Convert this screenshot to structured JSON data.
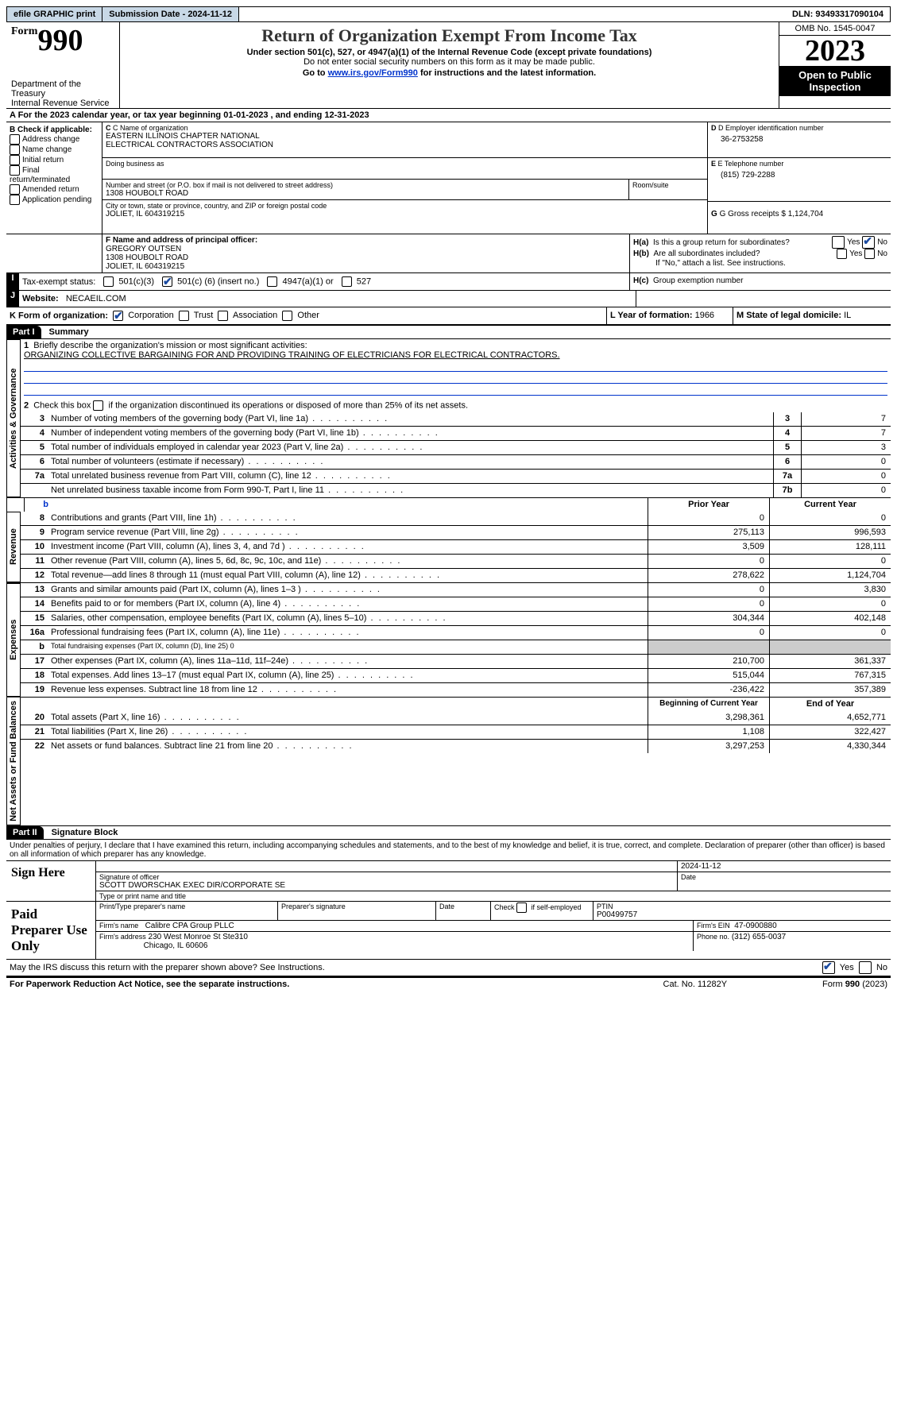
{
  "topbar": {
    "efile": "efile GRAPHIC print",
    "submission_label": "Submission Date - 2024-11-12",
    "dln": "DLN: 93493317090104"
  },
  "header": {
    "form_word": "Form",
    "form_number": "990",
    "title": "Return of Organization Exempt From Income Tax",
    "subtitle": "Under section 501(c), 527, or 4947(a)(1) of the Internal Revenue Code (except private foundations)",
    "ssn_note": "Do not enter social security numbers on this form as it may be made public.",
    "goto_prefix": "Go to ",
    "goto_link": "www.irs.gov/Form990",
    "goto_suffix": " for instructions and the latest information.",
    "dept": "Department of the Treasury",
    "irs": "Internal Revenue Service",
    "omb": "OMB No. 1545-0047",
    "year": "2023",
    "open_public": "Open to Public Inspection"
  },
  "rowA": {
    "prefix": "A For the 2023 calendar year, or tax year beginning ",
    "begin": "01-01-2023",
    "mid": "  , and ending ",
    "end": "12-31-2023"
  },
  "B": {
    "header": "B Check if applicable:",
    "items": [
      "Address change",
      "Name change",
      "Initial return",
      "Final return/terminated",
      "Amended return",
      "Application pending"
    ]
  },
  "C": {
    "name_lbl": "C Name of organization",
    "name1": "EASTERN ILLINOIS CHAPTER NATIONAL",
    "name2": "ELECTRICAL CONTRACTORS ASSOCIATION",
    "dba_lbl": "Doing business as",
    "street_lbl": "Number and street (or P.O. box if mail is not delivered to street address)",
    "street": "1308 HOUBOLT ROAD",
    "room_lbl": "Room/suite",
    "city_lbl": "City or town, state or province, country, and ZIP or foreign postal code",
    "city": "JOLIET, IL  604319215"
  },
  "D": {
    "lbl": "D Employer identification number",
    "val": "36-2753258"
  },
  "E": {
    "lbl": "E Telephone number",
    "val": "(815) 729-2288"
  },
  "G": {
    "lbl": "G Gross receipts $",
    "val": "1,124,704"
  },
  "F": {
    "lbl": "F  Name and address of principal officer:",
    "l1": "GREGORY OUTSEN",
    "l2": "1308 HOUBOLT ROAD",
    "l3": "JOLIET, IL  604319215"
  },
  "H": {
    "a_lbl": "H(a)  Is this a group return for subordinates?",
    "b_lbl": "H(b)  Are all subordinates included?",
    "b_note": "If \"No,\" attach a list. See instructions.",
    "c_lbl": "H(c)  Group exemption number",
    "yes": "Yes",
    "no": "No"
  },
  "I": {
    "lbl": "Tax-exempt status:",
    "opt1": "501(c)(3)",
    "opt2_pre": "501(c) (",
    "opt2_val": "6",
    "opt2_post": ") (insert no.)",
    "opt3": "4947(a)(1) or",
    "opt4": "527"
  },
  "J": {
    "lbl": "Website:",
    "val": "NECAEIL.COM"
  },
  "K": {
    "lbl": "K Form of organization:",
    "opts": [
      "Corporation",
      "Trust",
      "Association",
      "Other"
    ]
  },
  "L": {
    "lbl": "L Year of formation:",
    "val": "1966"
  },
  "M": {
    "lbl": "M State of legal domicile:",
    "val": "IL"
  },
  "part1": {
    "label": "Part I",
    "title": "Summary",
    "side_activities": "Activities & Governance",
    "side_revenue": "Revenue",
    "side_expenses": "Expenses",
    "side_net": "Net Assets or Fund Balances",
    "q1_lbl": "Briefly describe the organization's mission or most significant activities:",
    "q1_text": "ORGANIZING COLLECTIVE BARGAINING FOR AND PROVIDING TRAINING OF ELECTRICIANS FOR ELECTRICAL CONTRACTORS.",
    "q2": "Check this box      if the organization discontinued its operations or disposed of more than 25% of its net assets.",
    "lines_gov": [
      {
        "n": "3",
        "t": "Number of voting members of the governing body (Part VI, line 1a)",
        "box": "3",
        "v": "7"
      },
      {
        "n": "4",
        "t": "Number of independent voting members of the governing body (Part VI, line 1b)",
        "box": "4",
        "v": "7"
      },
      {
        "n": "5",
        "t": "Total number of individuals employed in calendar year 2023 (Part V, line 2a)",
        "box": "5",
        "v": "3"
      },
      {
        "n": "6",
        "t": "Total number of volunteers (estimate if necessary)",
        "box": "6",
        "v": "0"
      },
      {
        "n": "7a",
        "t": "Total unrelated business revenue from Part VIII, column (C), line 12",
        "box": "7a",
        "v": "0"
      },
      {
        "n": "",
        "t": "Net unrelated business taxable income from Form 990-T, Part I, line 11",
        "box": "7b",
        "v": "0"
      }
    ],
    "header_b": "b",
    "prior_year": "Prior Year",
    "current_year": "Current Year",
    "lines_rev": [
      {
        "n": "8",
        "t": "Contributions and grants (Part VIII, line 1h)",
        "p": "0",
        "c": "0"
      },
      {
        "n": "9",
        "t": "Program service revenue (Part VIII, line 2g)",
        "p": "275,113",
        "c": "996,593"
      },
      {
        "n": "10",
        "t": "Investment income (Part VIII, column (A), lines 3, 4, and 7d )",
        "p": "3,509",
        "c": "128,111"
      },
      {
        "n": "11",
        "t": "Other revenue (Part VIII, column (A), lines 5, 6d, 8c, 9c, 10c, and 11e)",
        "p": "0",
        "c": "0"
      },
      {
        "n": "12",
        "t": "Total revenue—add lines 8 through 11 (must equal Part VIII, column (A), line 12)",
        "p": "278,622",
        "c": "1,124,704"
      }
    ],
    "lines_exp": [
      {
        "n": "13",
        "t": "Grants and similar amounts paid (Part IX, column (A), lines 1–3 )",
        "p": "0",
        "c": "3,830"
      },
      {
        "n": "14",
        "t": "Benefits paid to or for members (Part IX, column (A), line 4)",
        "p": "0",
        "c": "0"
      },
      {
        "n": "15",
        "t": "Salaries, other compensation, employee benefits (Part IX, column (A), lines 5–10)",
        "p": "304,344",
        "c": "402,148"
      },
      {
        "n": "16a",
        "t": "Professional fundraising fees (Part IX, column (A), line 11e)",
        "p": "0",
        "c": "0"
      },
      {
        "n": "b",
        "t": "Total fundraising expenses (Part IX, column (D), line 25) 0",
        "p": "__shade__",
        "c": "__shade__",
        "small": true
      },
      {
        "n": "17",
        "t": "Other expenses (Part IX, column (A), lines 11a–11d, 11f–24e)",
        "p": "210,700",
        "c": "361,337"
      },
      {
        "n": "18",
        "t": "Total expenses. Add lines 13–17 (must equal Part IX, column (A), line 25)",
        "p": "515,044",
        "c": "767,315"
      },
      {
        "n": "19",
        "t": "Revenue less expenses. Subtract line 18 from line 12",
        "p": "-236,422",
        "c": "357,389"
      }
    ],
    "begin_year": "Beginning of Current Year",
    "end_year": "End of Year",
    "lines_net": [
      {
        "n": "20",
        "t": "Total assets (Part X, line 16)",
        "p": "3,298,361",
        "c": "4,652,771"
      },
      {
        "n": "21",
        "t": "Total liabilities (Part X, line 26)",
        "p": "1,108",
        "c": "322,427"
      },
      {
        "n": "22",
        "t": "Net assets or fund balances. Subtract line 21 from line 20",
        "p": "3,297,253",
        "c": "4,330,344"
      }
    ]
  },
  "part2": {
    "label": "Part II",
    "title": "Signature Block",
    "penalties": "Under penalties of perjury, I declare that I have examined this return, including accompanying schedules and statements, and to the best of my knowledge and belief, it is true, correct, and complete. Declaration of preparer (other than officer) is based on all information of which preparer has any knowledge.",
    "sign_here": "Sign Here",
    "sig_date": "2024-11-12",
    "sig_officer_lbl": "Signature of officer",
    "sig_officer_name": "SCOTT DWORSCHAK  EXEC DIR/CORPORATE SE",
    "sig_typename_lbl": "Type or print name and title",
    "date_lbl": "Date",
    "paid_prep": "Paid Preparer Use Only",
    "pp_name_lbl": "Print/Type preparer's name",
    "pp_sig_lbl": "Preparer's signature",
    "pp_date_lbl": "Date",
    "pp_check_lbl": "Check         if self-employed",
    "ptin_lbl": "PTIN",
    "ptin": "P00499757",
    "firm_name_lbl": "Firm's name",
    "firm_name": "Calibre CPA Group PLLC",
    "firm_ein_lbl": "Firm's EIN",
    "firm_ein": "47-0900880",
    "firm_addr_lbl": "Firm's address",
    "firm_addr1": "230 West Monroe St Ste310",
    "firm_addr2": "Chicago, IL  60606",
    "phone_lbl": "Phone no.",
    "phone": "(312) 655-0037",
    "discuss": "May the IRS discuss this return with the preparer shown above? See Instructions.",
    "yes": "Yes",
    "no": "No"
  },
  "footer": {
    "paperwork": "For Paperwork Reduction Act Notice, see the separate instructions.",
    "cat": "Cat. No. 11282Y",
    "form": "Form 990 (2023)"
  }
}
